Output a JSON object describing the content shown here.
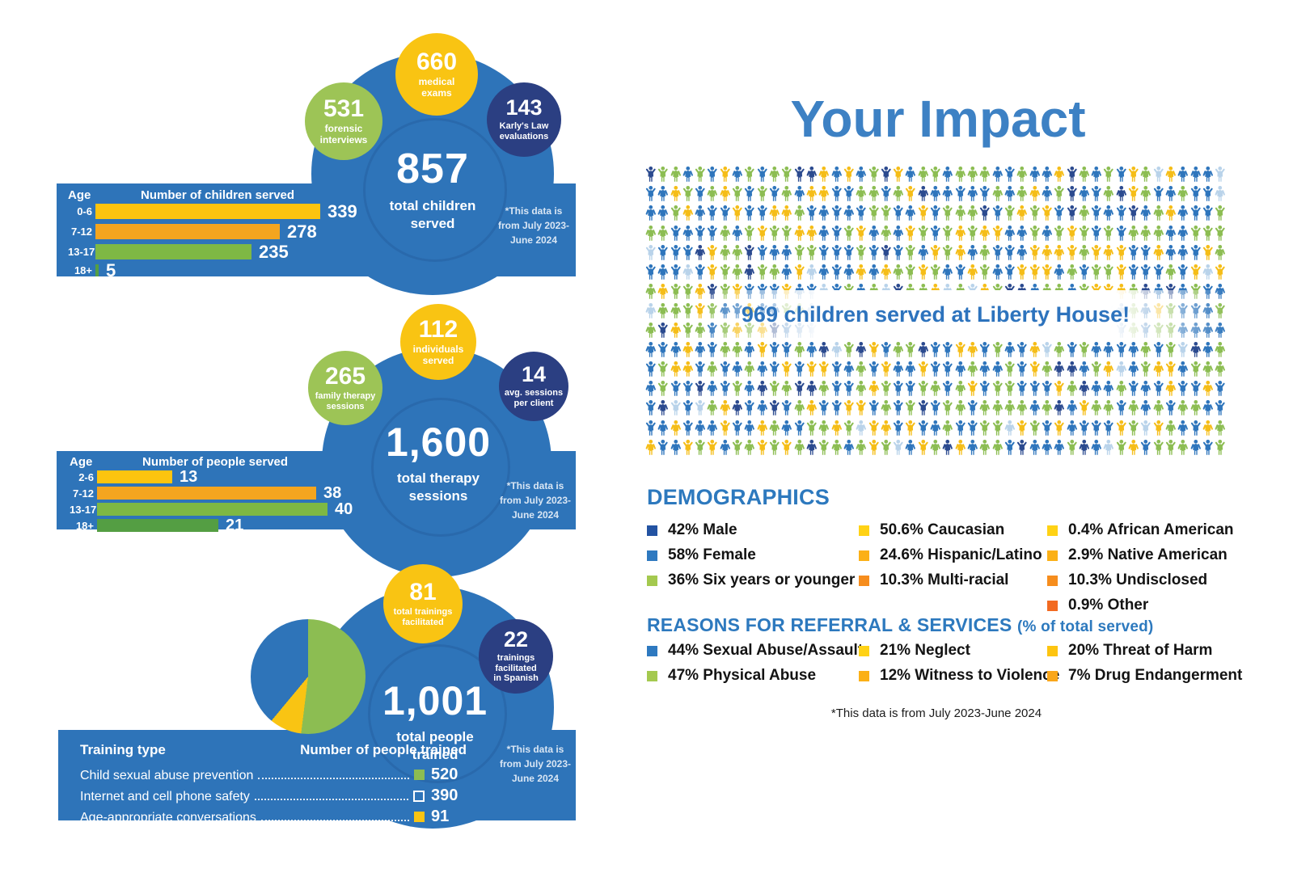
{
  "page": {
    "title": "Your Impact",
    "footnote": "*This data is from July 2023-June 2024"
  },
  "banner": {
    "text": "969 children served at Liberty House!"
  },
  "pictogram": {
    "total": 969,
    "colors": [
      "#2e75bc",
      "#8cbd52",
      "#f5bd17",
      "#2b4a8f",
      "#b9d3ea"
    ]
  },
  "sections": [
    {
      "name": "children-served",
      "badges": [
        {
          "value": "660",
          "label": "medical\nexams",
          "color": "#f9c413"
        },
        {
          "value": "531",
          "label": "forensic\ninterviews",
          "color": "#9dc456"
        },
        {
          "value": "143",
          "label": "Karly's Law\nevaluations",
          "color": "#2b3f82"
        }
      ],
      "center": {
        "value": "857",
        "label": "total children\nserved"
      },
      "note": "*This data is\nfrom July 2023-\nJune 2024",
      "chart": {
        "age_header": "Age",
        "value_header": "Number of children served",
        "rows": [
          {
            "age": "0-6",
            "value": 339,
            "color": "#fcc40f"
          },
          {
            "age": "7-12",
            "value": 278,
            "color": "#f4a51f"
          },
          {
            "age": "13-17",
            "value": 235,
            "color": "#7eb844"
          },
          {
            "age": "18+",
            "value": 5,
            "color": "#549e43"
          }
        ]
      }
    },
    {
      "name": "therapy",
      "badges": [
        {
          "value": "112",
          "label": "individuals\nserved",
          "color": "#f9c413"
        },
        {
          "value": "265",
          "label": "family therapy\nsessions",
          "color": "#9dc456"
        },
        {
          "value": "14",
          "label": "avg. sessions\nper client",
          "color": "#2b3f82"
        }
      ],
      "center": {
        "value": "1,600",
        "label": "total therapy\nsessions"
      },
      "note": "*This data is\nfrom July 2023-\nJune 2024",
      "chart": {
        "age_header": "Age",
        "value_header": "Number of people served",
        "rows": [
          {
            "age": "2-6",
            "value": 13,
            "color": "#fcc40f"
          },
          {
            "age": "7-12",
            "value": 38,
            "color": "#f4a51f"
          },
          {
            "age": "13-17",
            "value": 40,
            "color": "#7eb844"
          },
          {
            "age": "18+",
            "value": 21,
            "color": "#549e43"
          }
        ]
      }
    },
    {
      "name": "training",
      "badges": [
        {
          "value": "81",
          "label": "total trainings\nfacilitated",
          "color": "#f9c413"
        },
        {
          "value": "22",
          "label": "trainings\nfacilitated\nin Spanish",
          "color": "#2b3f82"
        }
      ],
      "center": {
        "value": "1,001",
        "label": "total people\ntrained"
      },
      "note": "*This data is\nfrom July 2023-\nJune 2024",
      "table": {
        "type_header": "Training type",
        "value_header": "Number of people trained",
        "rows": [
          {
            "label": "Child sexual abuse prevention",
            "value": 520,
            "swatch": "#8cbd52"
          },
          {
            "label": "Internet and cell phone safety",
            "value": 390,
            "swatch": "outline"
          },
          {
            "label": "Age-appropriate conversations",
            "value": 91,
            "swatch": "#f9c413"
          }
        ]
      },
      "pie": [
        {
          "value": 520,
          "color": "#8cbd52"
        },
        {
          "value": 91,
          "color": "#f9c413"
        },
        {
          "value": 390,
          "color": "#2e74b9"
        }
      ]
    }
  ],
  "demographics": {
    "header": "DEMOGRAPHICS",
    "columns": [
      {
        "items": [
          {
            "text": "42% Male",
            "color": "#2353a2"
          },
          {
            "text": "58% Female",
            "color": "#2e79c0"
          },
          {
            "text": "36% Six years or younger",
            "color": "#a4c94f"
          }
        ]
      },
      {
        "items": [
          {
            "text": "50.6% Caucasian",
            "color": "#ffd215"
          },
          {
            "text": "24.6% Hispanic/Latino",
            "color": "#fbb016"
          },
          {
            "text": "10.3% Multi-racial",
            "color": "#f68d1d"
          }
        ]
      },
      {
        "items": [
          {
            "text": "0.4% African American",
            "color": "#ffd215"
          },
          {
            "text": "2.9% Native American",
            "color": "#fbb016"
          },
          {
            "text": "10.3% Undisclosed",
            "color": "#f68d1d"
          },
          {
            "text": "0.9% Other",
            "color": "#f26a21"
          }
        ]
      }
    ]
  },
  "referral": {
    "header": "REASONS FOR REFERRAL & SERVICES",
    "subheader": "(% of total served)",
    "columns": [
      {
        "items": [
          {
            "text": "44% Sexual Abuse/Assault",
            "color": "#2e79c0"
          },
          {
            "text": "47% Physical Abuse",
            "color": "#a4c94f"
          }
        ]
      },
      {
        "items": [
          {
            "text": "21% Neglect",
            "color": "#ffd215"
          },
          {
            "text": "12% Witness to Violence",
            "color": "#fbb016"
          }
        ]
      },
      {
        "items": [
          {
            "text": "20% Threat of Harm",
            "color": "#fdc410"
          },
          {
            "text": "7% Drug Endangerment",
            "color": "#f9a61a"
          }
        ]
      }
    ]
  },
  "chart_data": [
    {
      "type": "bar",
      "title": "Number of children served",
      "categories": [
        "0-6",
        "7-12",
        "13-17",
        "18+"
      ],
      "values": [
        339,
        278,
        235,
        5
      ],
      "xlim": [
        0,
        350
      ],
      "annotations": [
        "857 total children served",
        "660 medical exams",
        "531 forensic interviews",
        "143 Karly's Law evaluations",
        "*This data is from July 2023-June 2024"
      ]
    },
    {
      "type": "bar",
      "title": "Number of people served",
      "categories": [
        "2-6",
        "7-12",
        "13-17",
        "18+"
      ],
      "values": [
        13,
        38,
        40,
        21
      ],
      "xlim": [
        0,
        42
      ],
      "annotations": [
        "1,600 total therapy sessions",
        "112 individuals served",
        "265 family therapy sessions",
        "14 avg. sessions per client",
        "*This data is from July 2023-June 2024"
      ]
    },
    {
      "type": "pie",
      "title": "Number of people trained",
      "labels": [
        "Child sexual abuse prevention",
        "Internet and cell phone safety",
        "Age-appropriate conversations"
      ],
      "values": [
        520,
        390,
        91
      ],
      "annotations": [
        "1,001 total people trained",
        "81 total trainings facilitated",
        "22 trainings facilitated in Spanish",
        "*This data is from July 2023-June 2024"
      ]
    },
    {
      "type": "pictogram",
      "title": "969 children served at Liberty House!",
      "value": 969
    },
    {
      "type": "legend",
      "title": "DEMOGRAPHICS",
      "items": [
        [
          "Male",
          42
        ],
        [
          "Female",
          58
        ],
        [
          "Six years or younger",
          36
        ],
        [
          "Caucasian",
          50.6
        ],
        [
          "Hispanic/Latino",
          24.6
        ],
        [
          "Multi-racial",
          10.3
        ],
        [
          "African American",
          0.4
        ],
        [
          "Native American",
          2.9
        ],
        [
          "Undisclosed",
          10.3
        ],
        [
          "Other",
          0.9
        ]
      ]
    },
    {
      "type": "legend",
      "title": "REASONS FOR REFERRAL & SERVICES (% of total served)",
      "items": [
        [
          "Sexual Abuse/Assault",
          44
        ],
        [
          "Physical Abuse",
          47
        ],
        [
          "Neglect",
          21
        ],
        [
          "Witness to Violence",
          12
        ],
        [
          "Threat of Harm",
          20
        ],
        [
          "Drug Endangerment",
          7
        ]
      ]
    }
  ]
}
